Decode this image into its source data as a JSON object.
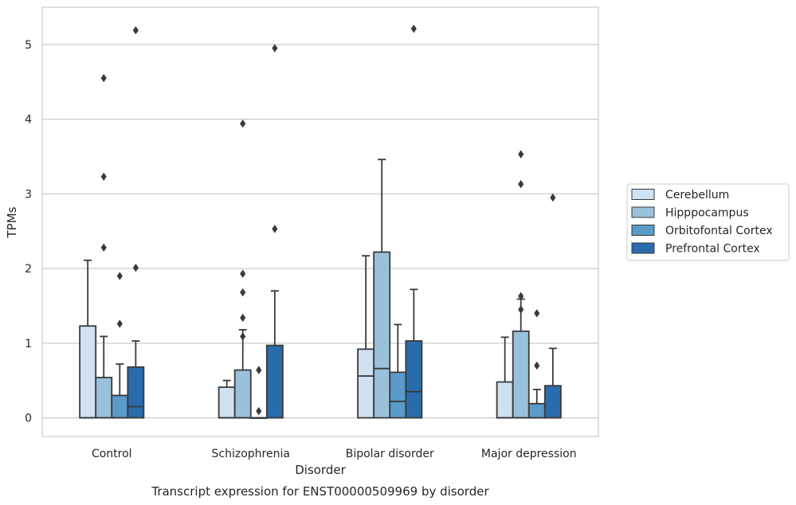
{
  "chart_data": {
    "type": "boxplot",
    "title": "",
    "caption": "Transcript expression for ENST00000509969 by disorder",
    "xlabel": "Disorder",
    "ylabel": "TPMs",
    "ylim": [
      -0.25,
      5.5
    ],
    "yticks": [
      0,
      1,
      2,
      3,
      4,
      5
    ],
    "grid": "horizontal",
    "legend_position": "right",
    "categories": [
      "Control",
      "Schizophrenia",
      "Bipolar disorder",
      "Major depression"
    ],
    "series": [
      {
        "name": "Cerebellum",
        "color": "#d0e1f1",
        "boxes": [
          {
            "q1": 0,
            "median": 0,
            "q3": 1.23,
            "whisker_low": 0,
            "whisker_high": 2.11,
            "outliers": []
          },
          {
            "q1": 0,
            "median": 0,
            "q3": 0.41,
            "whisker_low": 0,
            "whisker_high": 0.5,
            "outliers": []
          },
          {
            "q1": 0,
            "median": 0.56,
            "q3": 0.92,
            "whisker_low": 0,
            "whisker_high": 2.17,
            "outliers": []
          },
          {
            "q1": 0,
            "median": 0,
            "q3": 0.48,
            "whisker_low": 0,
            "whisker_high": 1.08,
            "outliers": []
          }
        ]
      },
      {
        "name": "Hipppocampus",
        "color": "#9ac1dc",
        "boxes": [
          {
            "q1": 0,
            "median": 0,
            "q3": 0.54,
            "whisker_low": 0,
            "whisker_high": 1.09,
            "outliers": [
              2.28,
              3.23,
              4.55
            ]
          },
          {
            "q1": 0,
            "median": 0,
            "q3": 0.64,
            "whisker_low": 0,
            "whisker_high": 1.18,
            "outliers": [
              1.09,
              1.34,
              1.68,
              1.93,
              3.94
            ]
          },
          {
            "q1": 0,
            "median": 0.66,
            "q3": 2.22,
            "whisker_low": 0,
            "whisker_high": 3.46,
            "outliers": []
          },
          {
            "q1": 0,
            "median": 0,
            "q3": 1.16,
            "whisker_low": 0,
            "whisker_high": 1.59,
            "outliers": [
              1.45,
              1.63,
              3.13,
              3.53
            ]
          }
        ]
      },
      {
        "name": "Orbitofontal Cortex",
        "color": "#5a9bc9",
        "boxes": [
          {
            "q1": 0,
            "median": 0,
            "q3": 0.3,
            "whisker_low": 0,
            "whisker_high": 0.72,
            "outliers": [
              1.26,
              1.9
            ]
          },
          {
            "q1": 0,
            "median": 0,
            "q3": 0,
            "whisker_low": 0,
            "whisker_high": 0,
            "outliers": [
              0.09,
              0.64
            ]
          },
          {
            "q1": 0,
            "median": 0.22,
            "q3": 0.61,
            "whisker_low": 0,
            "whisker_high": 1.25,
            "outliers": []
          },
          {
            "q1": 0,
            "median": 0,
            "q3": 0.19,
            "whisker_low": 0,
            "whisker_high": 0.38,
            "outliers": [
              0.7,
              1.4
            ]
          }
        ]
      },
      {
        "name": "Prefrontal Cortex",
        "color": "#2a6bac",
        "boxes": [
          {
            "q1": 0,
            "median": 0.15,
            "q3": 0.68,
            "whisker_low": 0,
            "whisker_high": 1.03,
            "outliers": [
              2.01,
              5.19
            ]
          },
          {
            "q1": 0,
            "median": 0,
            "q3": 0.97,
            "whisker_low": 0,
            "whisker_high": 1.7,
            "outliers": [
              2.53,
              4.95
            ]
          },
          {
            "q1": 0,
            "median": 0.35,
            "q3": 1.03,
            "whisker_low": 0,
            "whisker_high": 1.72,
            "outliers": [
              5.21
            ]
          },
          {
            "q1": 0,
            "median": 0,
            "q3": 0.43,
            "whisker_low": 0,
            "whisker_high": 0.93,
            "outliers": [
              2.95
            ]
          }
        ]
      }
    ]
  }
}
